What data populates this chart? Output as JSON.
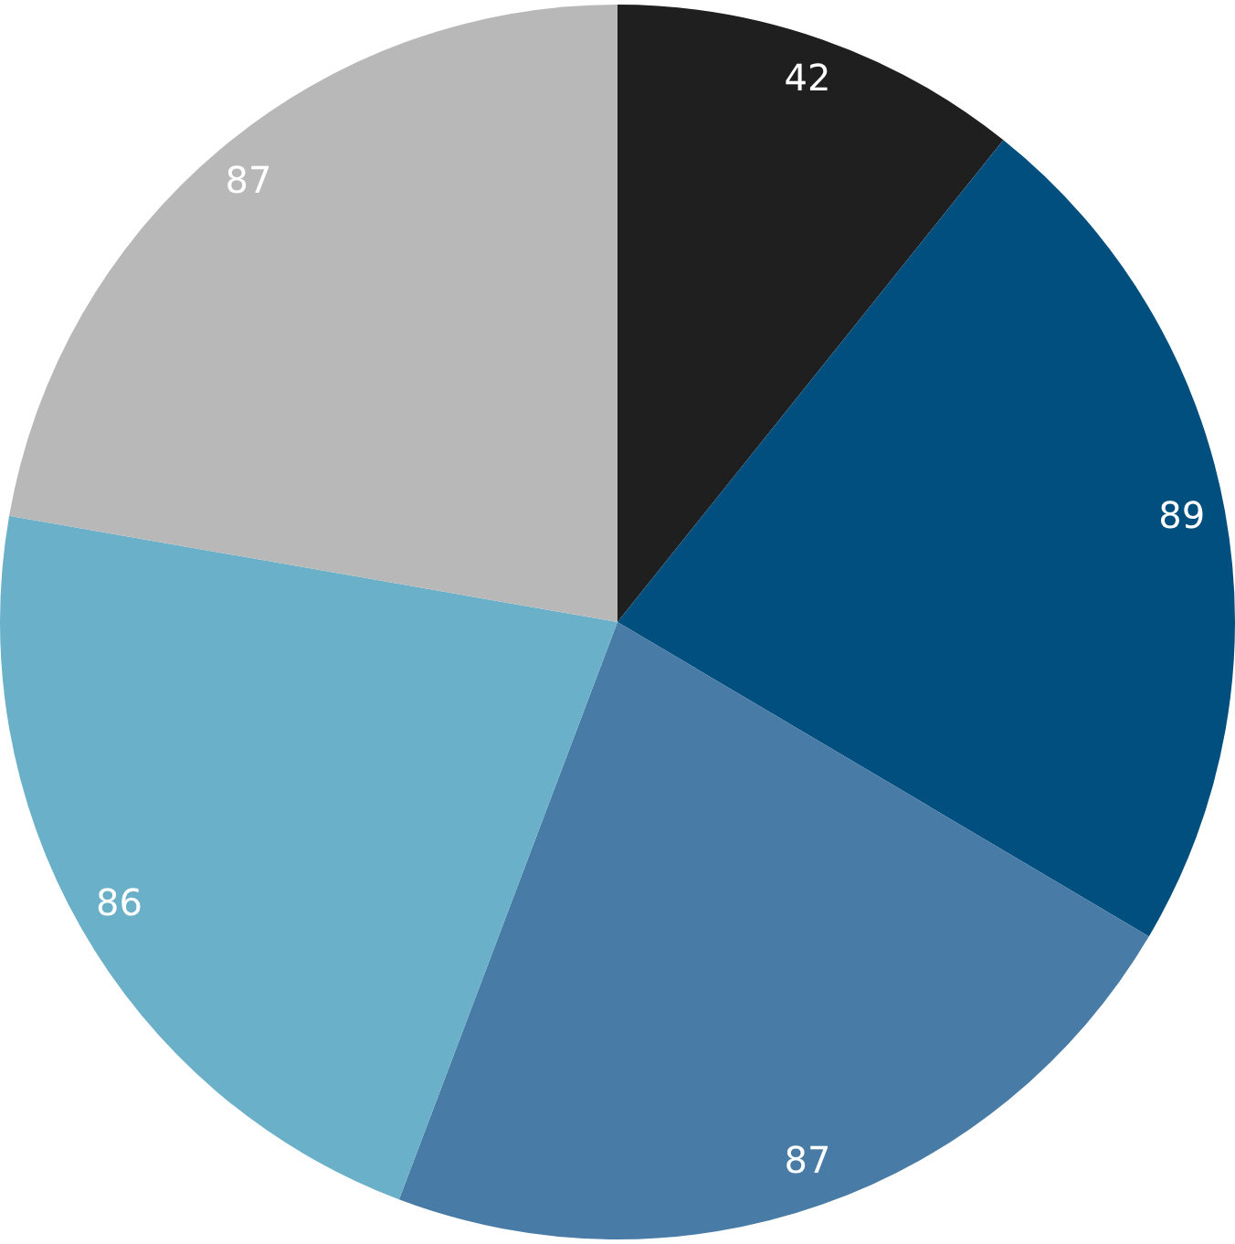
{
  "chart_data": {
    "type": "pie",
    "categories": [
      null,
      null,
      null,
      null,
      null
    ],
    "values": [
      42,
      89,
      87,
      86,
      87
    ],
    "colors": [
      "#1f1f1f",
      "#004f7f",
      "#487ba5",
      "#6ab0c8",
      "#b8b8b8"
    ],
    "data_labels": true,
    "legend": false
  }
}
